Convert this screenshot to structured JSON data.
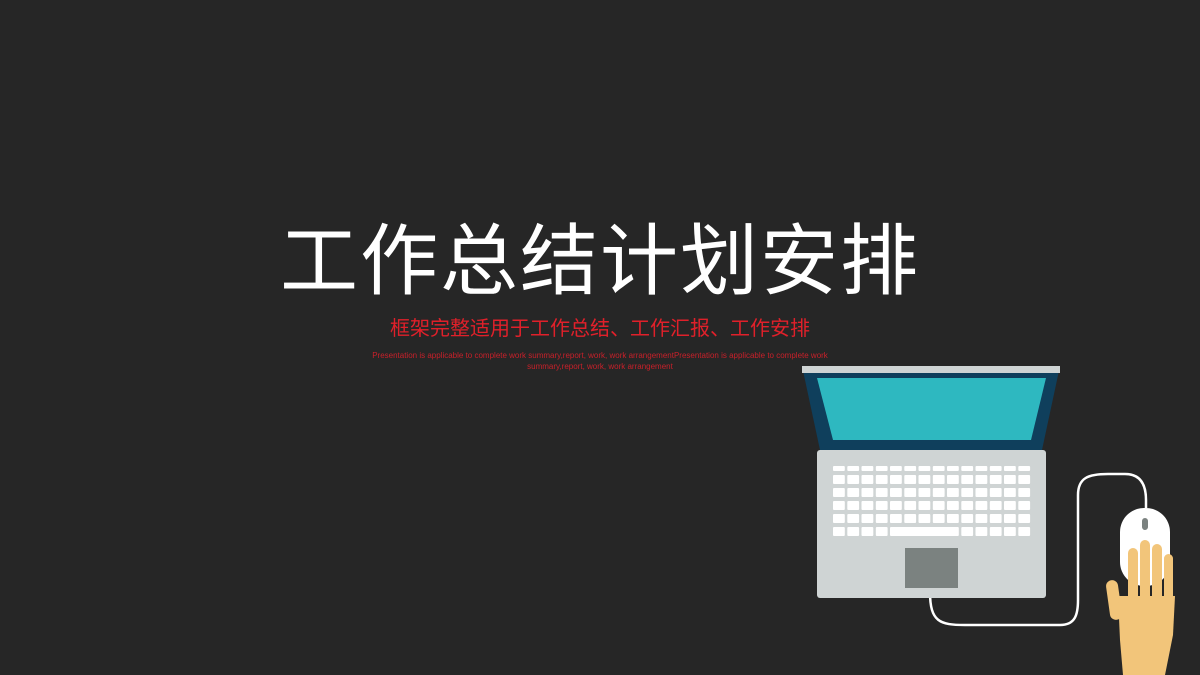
{
  "slide": {
    "title": "工作总结计划安排",
    "subtitle": "框架完整适用于工作总结、工作汇报、工作安排",
    "description": "Presentation is applicable to complete work summary,report, work, work arrangementPresentation is applicable to complete work summary,report, work, work arrangement"
  },
  "illustration": {
    "icons": [
      "laptop-icon",
      "mouse-icon",
      "hand-icon"
    ],
    "colors": {
      "background": "#262626",
      "screen": "#2eb8c0",
      "screen_frame": "#0f3f5c",
      "laptop_body": "#cfd4d4",
      "keys": "#ffffff",
      "touchpad": "#7b8280",
      "cable": "#ffffff",
      "hand": "#f2c57a"
    }
  }
}
